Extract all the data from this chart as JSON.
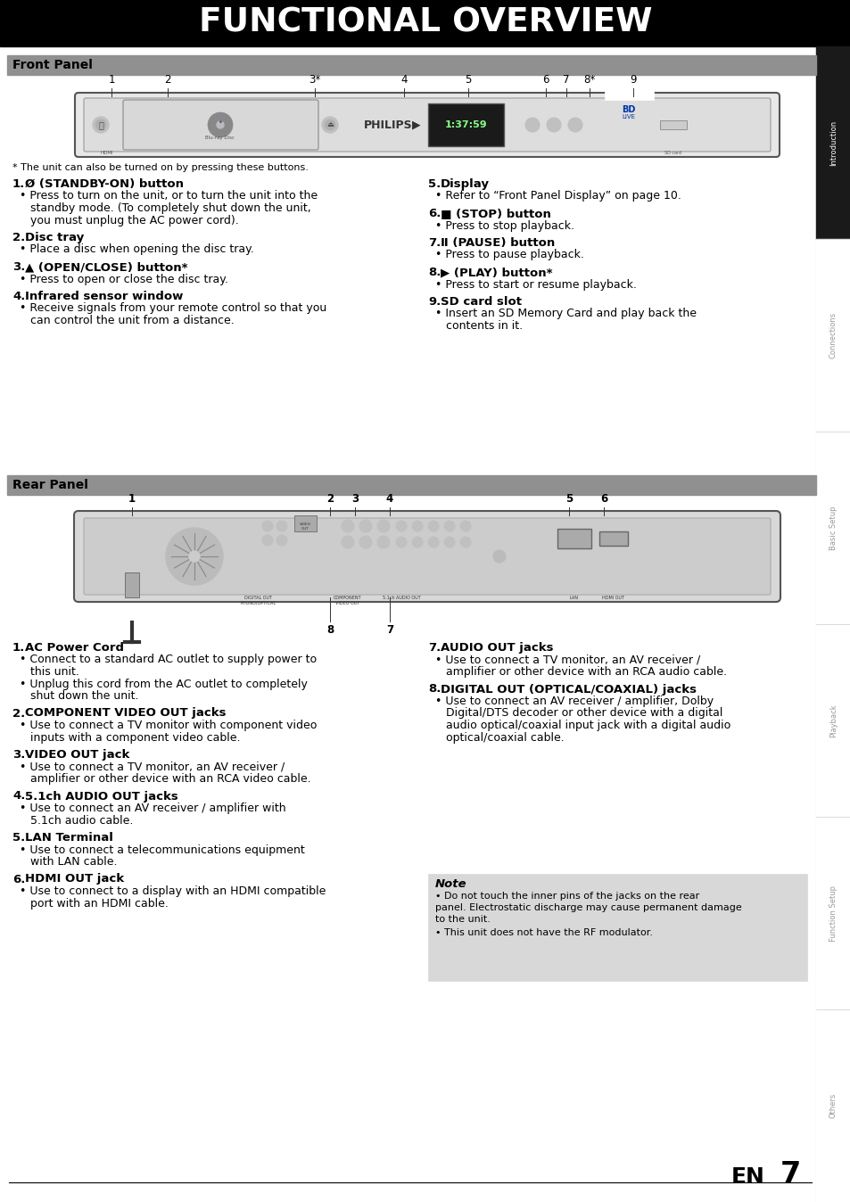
{
  "title": "FUNCTIONAL OVERVIEW",
  "page_bg": "#ffffff",
  "front_panel_title": "Front Panel",
  "rear_panel_title": "Rear Panel",
  "footnote": "* The unit can also be turned on by pressing these buttons.",
  "front_panel_items_left": [
    {
      "num": "1.",
      "bold": "Ø (STANDBY-ON) button",
      "lines": [
        "  • Press to turn on the unit, or to turn the unit into the",
        "     standby mode. (To completely shut down the unit,",
        "     you must unplug the AC power cord)."
      ]
    },
    {
      "num": "2.",
      "bold": "Disc tray",
      "lines": [
        "  • Place a disc when opening the disc tray."
      ]
    },
    {
      "num": "3.",
      "bold": "▲ (OPEN/CLOSE) button*",
      "lines": [
        "  • Press to open or close the disc tray."
      ]
    },
    {
      "num": "4.",
      "bold": "Infrared sensor window",
      "lines": [
        "  • Receive signals from your remote control so that you",
        "     can control the unit from a distance."
      ]
    }
  ],
  "front_panel_items_right": [
    {
      "num": "5.",
      "bold": "Display",
      "lines": [
        "  • Refer to “Front Panel Display” on page 10."
      ]
    },
    {
      "num": "6.",
      "bold": "■ (STOP) button",
      "lines": [
        "  • Press to stop playback."
      ]
    },
    {
      "num": "7.",
      "bold": "Ⅱ (PAUSE) button",
      "lines": [
        "  • Press to pause playback."
      ]
    },
    {
      "num": "8.",
      "bold": "▶ (PLAY) button*",
      "lines": [
        "  • Press to start or resume playback."
      ]
    },
    {
      "num": "9.",
      "bold": "SD card slot",
      "lines": [
        "  • Insert an SD Memory Card and play back the",
        "     contents in it."
      ]
    }
  ],
  "rear_panel_items_left": [
    {
      "num": "1.",
      "bold": "AC Power Cord",
      "lines": [
        "  • Connect to a standard AC outlet to supply power to",
        "     this unit.",
        "  • Unplug this cord from the AC outlet to completely",
        "     shut down the unit."
      ]
    },
    {
      "num": "2.",
      "bold": "COMPONENT VIDEO OUT jacks",
      "lines": [
        "  • Use to connect a TV monitor with component video",
        "     inputs with a component video cable."
      ]
    },
    {
      "num": "3.",
      "bold": "VIDEO OUT jack",
      "lines": [
        "  • Use to connect a TV monitor, an AV receiver /",
        "     amplifier or other device with an RCA video cable."
      ]
    },
    {
      "num": "4.",
      "bold": "5.1ch AUDIO OUT jacks",
      "lines": [
        "  • Use to connect an AV receiver / amplifier with",
        "     5.1ch audio cable."
      ]
    },
    {
      "num": "5.",
      "bold": "LAN Terminal",
      "lines": [
        "  • Use to connect a telecommunications equipment",
        "     with LAN cable."
      ]
    },
    {
      "num": "6.",
      "bold": "HDMI OUT jack",
      "lines": [
        "  • Use to connect to a display with an HDMI compatible",
        "     port with an HDMI cable."
      ]
    }
  ],
  "rear_panel_items_right": [
    {
      "num": "7.",
      "bold": "AUDIO OUT jacks",
      "lines": [
        "  • Use to connect a TV monitor, an AV receiver /",
        "     amplifier or other device with an RCA audio cable."
      ]
    },
    {
      "num": "8.",
      "bold": "DIGITAL OUT (OPTICAL/COAXIAL) jacks",
      "lines": [
        "  • Use to connect an AV receiver / amplifier, Dolby",
        "     Digital/DTS decoder or other device with a digital",
        "     audio optical/coaxial input jack with a digital audio",
        "     optical/coaxial cable."
      ]
    }
  ],
  "note_title": "Note",
  "note_items": [
    "• Do not touch the inner pins of the jacks on the rear panel. Electrostatic discharge may cause permanent damage to the unit.",
    "• This unit does not have the RF modulator."
  ],
  "sidebar_labels": [
    "Introduction",
    "Connections",
    "Basic Setup",
    "Playback",
    "Function Setup",
    "Others"
  ],
  "page_num": "7",
  "en_label": "EN",
  "front_num_positions": [
    [
      125,
      "1"
    ],
    [
      188,
      "2"
    ],
    [
      353,
      "3*"
    ],
    [
      453,
      "4"
    ],
    [
      525,
      "5"
    ],
    [
      612,
      "6"
    ],
    [
      635,
      "7"
    ],
    [
      661,
      "8*"
    ],
    [
      710,
      "9"
    ]
  ],
  "rear_num_top_positions": [
    [
      148,
      "1"
    ],
    [
      370,
      "2"
    ],
    [
      398,
      "3"
    ],
    [
      437,
      "4"
    ],
    [
      638,
      "5"
    ],
    [
      677,
      "6"
    ]
  ],
  "rear_num_bot_positions": [
    [
      370,
      "8"
    ],
    [
      437,
      "7"
    ]
  ]
}
